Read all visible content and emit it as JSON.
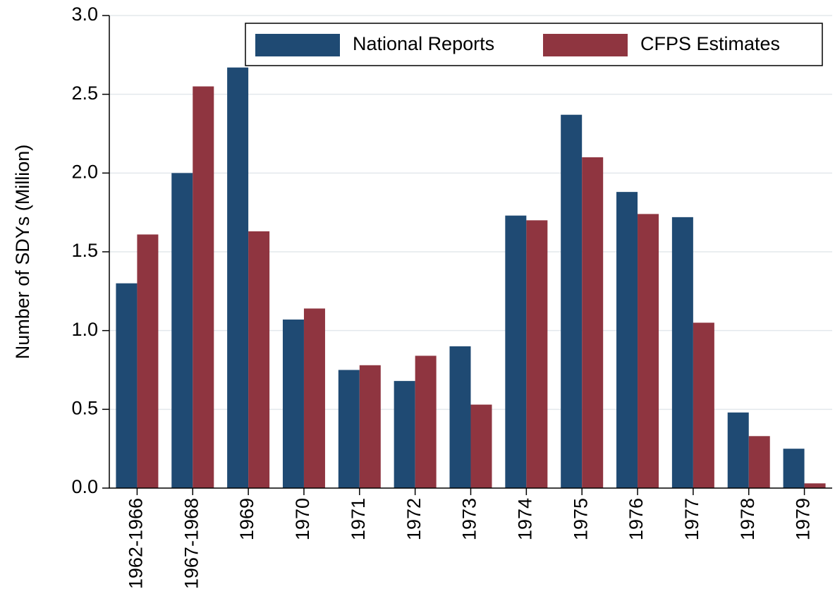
{
  "chart_data": {
    "type": "bar",
    "y_label": "Number of SDYs (Million)",
    "categories": [
      "1962-1966",
      "1967-1968",
      "1969",
      "1970",
      "1971",
      "1972",
      "1973",
      "1974",
      "1975",
      "1976",
      "1977",
      "1978",
      "1979"
    ],
    "series": [
      {
        "name": "National Reports",
        "color": "#1f4a73",
        "values": [
          1.3,
          2.0,
          2.67,
          1.07,
          0.75,
          0.68,
          0.9,
          1.73,
          2.37,
          1.88,
          1.72,
          0.48,
          0.25
        ]
      },
      {
        "name": "CFPS Estimates",
        "color": "#8f3540",
        "values": [
          1.61,
          2.55,
          1.63,
          1.14,
          0.78,
          0.84,
          0.53,
          1.7,
          2.1,
          1.74,
          1.05,
          0.33,
          0.03
        ]
      }
    ],
    "ylim": [
      0,
      3
    ],
    "yticks": [
      {
        "value": 0,
        "label": "0.0"
      },
      0.5,
      {
        "value": 1,
        "label": "1.0"
      },
      1.5,
      {
        "value": 2,
        "label": "2.0"
      },
      2.5,
      {
        "value": 3,
        "label": "3.0"
      }
    ],
    "grid": true,
    "legend": "top-right"
  }
}
